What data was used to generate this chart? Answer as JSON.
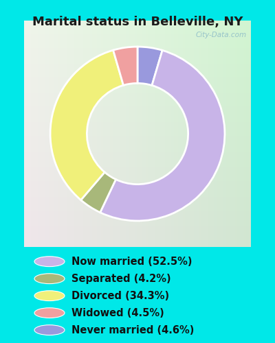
{
  "title": "Marital status in Belleville, NY",
  "wedge_sizes": [
    4.6,
    52.5,
    4.2,
    34.3,
    4.5
  ],
  "wedge_colors": [
    "#9999dd",
    "#c8b4e8",
    "#a8b87a",
    "#f0f07a",
    "#f0a0a0"
  ],
  "legend_labels": [
    "Now married (52.5%)",
    "Separated (4.2%)",
    "Divorced (34.3%)",
    "Widowed (4.5%)",
    "Never married (4.6%)"
  ],
  "legend_colors": [
    "#c8b4e8",
    "#a8b87a",
    "#f0f07a",
    "#f0a0a0",
    "#9999dd"
  ],
  "bg_cyan": "#00e8e8",
  "chart_bg": "#d8ece0",
  "title_fontsize": 13,
  "legend_fontsize": 10.5,
  "watermark": "City-Data.com"
}
